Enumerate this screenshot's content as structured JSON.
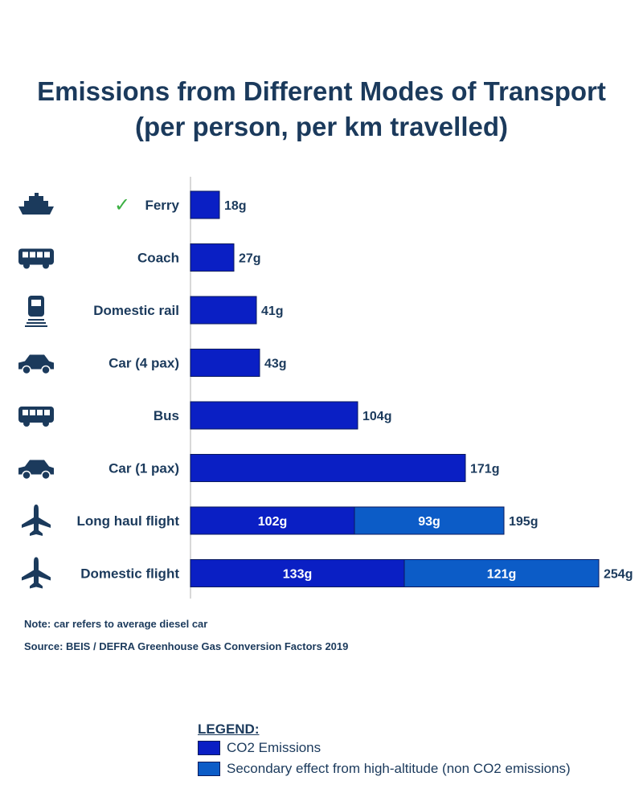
{
  "title_lines": [
    "Emissions from Different Modes of Transport",
    "(per person, per km travelled)"
  ],
  "colors": {
    "co2": "#0a1fc4",
    "secondary": "#0c5cc7",
    "text": "#1b3a5c",
    "check": "#3cb043",
    "axis": "#cccccc"
  },
  "chart_data": {
    "type": "bar",
    "orientation": "horizontal",
    "stacked": true,
    "categories": [
      "Ferry",
      "Coach",
      "Domestic rail",
      "Car (4 pax)",
      "Bus",
      "Car (1 pax)",
      "Long haul flight",
      "Domestic flight"
    ],
    "icons": [
      "ship-icon",
      "coach-icon",
      "train-icon",
      "car-icon",
      "bus-icon",
      "car-icon",
      "airplane-icon",
      "airplane-icon"
    ],
    "highlight": {
      "category": "Ferry",
      "symbol": "✓"
    },
    "series": [
      {
        "name": "CO2 Emissions",
        "values": [
          18,
          27,
          41,
          43,
          104,
          171,
          102,
          133
        ],
        "value_labels": [
          "",
          "",
          "",
          "",
          "",
          "",
          "102g",
          "133g"
        ]
      },
      {
        "name": "Secondary effect from high-altitude (non CO2 emissions)",
        "values": [
          0,
          0,
          0,
          0,
          0,
          0,
          93,
          121
        ],
        "value_labels": [
          "",
          "",
          "",
          "",
          "",
          "",
          "93g",
          "121g"
        ]
      }
    ],
    "total_labels": [
      "18g",
      "27g",
      "41g",
      "43g",
      "104g",
      "171g",
      "195g",
      "254g"
    ],
    "xlim": [
      0,
      254
    ]
  },
  "notes": {
    "note": "Note: car refers to average diesel car",
    "source": "Source: BEIS / DEFRA Greenhouse Gas Conversion Factors 2019"
  },
  "legend": {
    "title": "LEGEND:",
    "items": [
      {
        "label": "CO2 Emissions",
        "color": "#0a1fc4"
      },
      {
        "label": "Secondary effect from high-altitude (non CO2 emissions)",
        "color": "#0c5cc7"
      }
    ]
  }
}
